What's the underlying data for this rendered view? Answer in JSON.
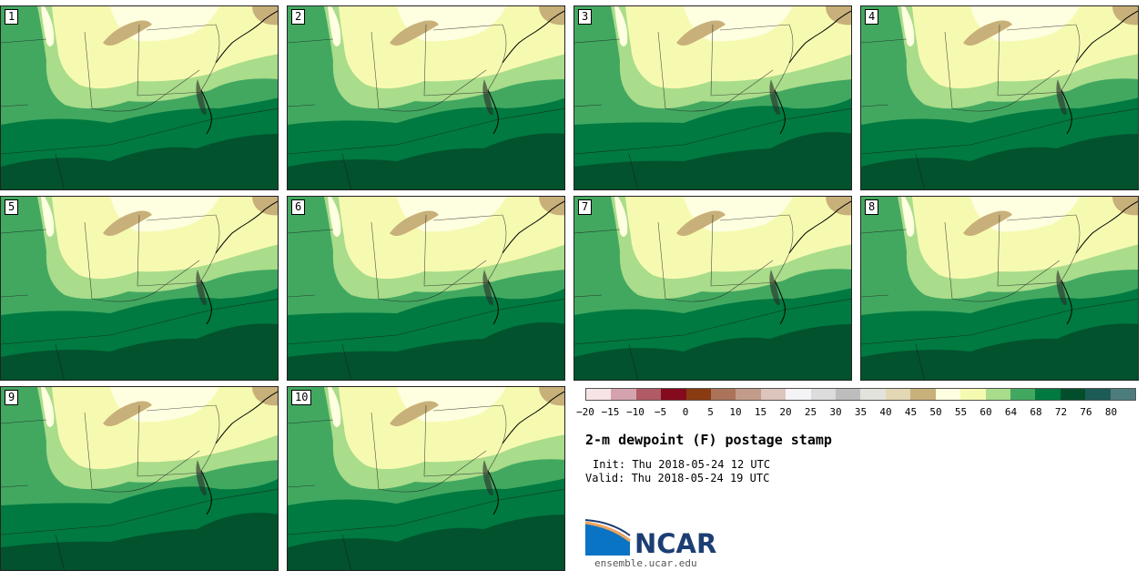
{
  "title": "2-m dewpoint (F) postage stamp",
  "init_label": "Init: Thu 2018-05-24 12 UTC",
  "valid_label": "Valid: Thu 2018-05-24 19 UTC",
  "logo": {
    "name": "NCAR",
    "url": "ensemble.ucar.edu"
  },
  "panels": [
    {
      "number": "1"
    },
    {
      "number": "2"
    },
    {
      "number": "3"
    },
    {
      "number": "4"
    },
    {
      "number": "5"
    },
    {
      "number": "6"
    },
    {
      "number": "7"
    },
    {
      "number": "8"
    },
    {
      "number": "9"
    },
    {
      "number": "10"
    }
  ],
  "colorbar": {
    "ticks": [
      "−20",
      "−15",
      "−10",
      "−5",
      "0",
      "5",
      "10",
      "15",
      "20",
      "25",
      "30",
      "35",
      "40",
      "45",
      "50",
      "55",
      "60",
      "64",
      "68",
      "72",
      "76",
      "80"
    ],
    "colors": [
      "#f6e4e6",
      "#d4a3ad",
      "#b05b66",
      "#850a1e",
      "#8a3b12",
      "#ab735a",
      "#c29b8a",
      "#dcc5bc",
      "#f4f3f5",
      "#dcdcdc",
      "#bdbdbd",
      "#e2e4dc",
      "#e3d7b4",
      "#c8b07a",
      "#fefee0",
      "#f6fab0",
      "#a9dc8b",
      "#42a860",
      "#007a40",
      "#024e2c",
      "#1c5b56",
      "#4d7c7c"
    ]
  },
  "map_colors": {
    "very_dry": "#c8b07a",
    "dry": "#fefee0",
    "mild": "#f6fab0",
    "moist": "#a9dc8b",
    "humid": "#42a860",
    "very_humid": "#007a40",
    "tropical": "#024e2c"
  }
}
